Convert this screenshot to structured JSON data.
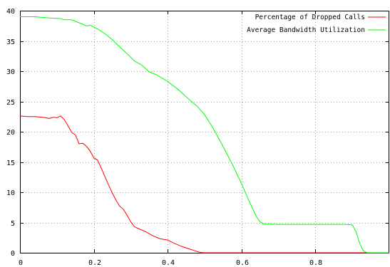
{
  "chart_data": {
    "type": "line",
    "xlim": [
      0,
      1
    ],
    "ylim": [
      0,
      40
    ],
    "x_ticks": [
      0,
      0.2,
      0.4,
      0.6,
      0.8
    ],
    "y_ticks": [
      0,
      5,
      10,
      15,
      20,
      25,
      30,
      35,
      40
    ],
    "x_tick_labels": [
      "0",
      "0.2",
      "0.4",
      "0.6",
      "0.8"
    ],
    "y_tick_labels": [
      "0",
      "5",
      "10",
      "15",
      "20",
      "25",
      "30",
      "35",
      "40"
    ],
    "grid": true,
    "legend_position": "top-right",
    "series": [
      {
        "name": "Percentage of Dropped Calls",
        "color": "#ff0000",
        "points": [
          [
            0,
            22.6
          ],
          [
            0.02,
            22.5
          ],
          [
            0.04,
            22.5
          ],
          [
            0.06,
            22.4
          ],
          [
            0.08,
            22.2
          ],
          [
            0.09,
            22.4
          ],
          [
            0.1,
            22.3
          ],
          [
            0.11,
            22.6
          ],
          [
            0.12,
            22.0
          ],
          [
            0.13,
            21.0
          ],
          [
            0.14,
            19.9
          ],
          [
            0.15,
            19.5
          ],
          [
            0.16,
            18.0
          ],
          [
            0.17,
            18.1
          ],
          [
            0.18,
            17.6
          ],
          [
            0.19,
            16.8
          ],
          [
            0.2,
            15.7
          ],
          [
            0.21,
            15.3
          ],
          [
            0.22,
            14.0
          ],
          [
            0.23,
            12.6
          ],
          [
            0.24,
            11.2
          ],
          [
            0.25,
            9.9
          ],
          [
            0.26,
            8.7
          ],
          [
            0.27,
            7.7
          ],
          [
            0.28,
            7.2
          ],
          [
            0.29,
            6.2
          ],
          [
            0.3,
            5.1
          ],
          [
            0.31,
            4.3
          ],
          [
            0.32,
            4.0
          ],
          [
            0.34,
            3.5
          ],
          [
            0.36,
            2.8
          ],
          [
            0.38,
            2.3
          ],
          [
            0.4,
            2.1
          ],
          [
            0.42,
            1.5
          ],
          [
            0.44,
            1.0
          ],
          [
            0.46,
            0.6
          ],
          [
            0.48,
            0.2
          ],
          [
            0.49,
            0.05
          ],
          [
            0.5,
            0
          ],
          [
            0.6,
            0
          ],
          [
            0.7,
            0
          ],
          [
            0.8,
            0
          ],
          [
            0.9,
            0
          ],
          [
            1.0,
            0
          ]
        ]
      },
      {
        "name": "Average Bandwidth Utilization",
        "color": "#00ff00",
        "points": [
          [
            0,
            39.0
          ],
          [
            0.04,
            39.0
          ],
          [
            0.08,
            38.8
          ],
          [
            0.11,
            38.7
          ],
          [
            0.12,
            38.5
          ],
          [
            0.14,
            38.5
          ],
          [
            0.16,
            38.0
          ],
          [
            0.18,
            37.5
          ],
          [
            0.19,
            37.6
          ],
          [
            0.21,
            37.0
          ],
          [
            0.23,
            36.2
          ],
          [
            0.25,
            35.2
          ],
          [
            0.27,
            34.0
          ],
          [
            0.29,
            32.9
          ],
          [
            0.31,
            31.7
          ],
          [
            0.33,
            31.0
          ],
          [
            0.35,
            29.9
          ],
          [
            0.37,
            29.4
          ],
          [
            0.4,
            28.3
          ],
          [
            0.43,
            26.9
          ],
          [
            0.46,
            25.2
          ],
          [
            0.48,
            24.2
          ],
          [
            0.5,
            22.8
          ],
          [
            0.52,
            20.9
          ],
          [
            0.54,
            18.7
          ],
          [
            0.56,
            16.4
          ],
          [
            0.58,
            14.0
          ],
          [
            0.6,
            11.4
          ],
          [
            0.62,
            8.6
          ],
          [
            0.64,
            6.0
          ],
          [
            0.65,
            5.1
          ],
          [
            0.66,
            4.75
          ],
          [
            0.7,
            4.7
          ],
          [
            0.8,
            4.7
          ],
          [
            0.85,
            4.7
          ],
          [
            0.88,
            4.7
          ],
          [
            0.9,
            4.6
          ],
          [
            0.91,
            3.5
          ],
          [
            0.92,
            1.5
          ],
          [
            0.93,
            0.3
          ],
          [
            0.94,
            0
          ],
          [
            1.0,
            0
          ]
        ]
      }
    ]
  }
}
